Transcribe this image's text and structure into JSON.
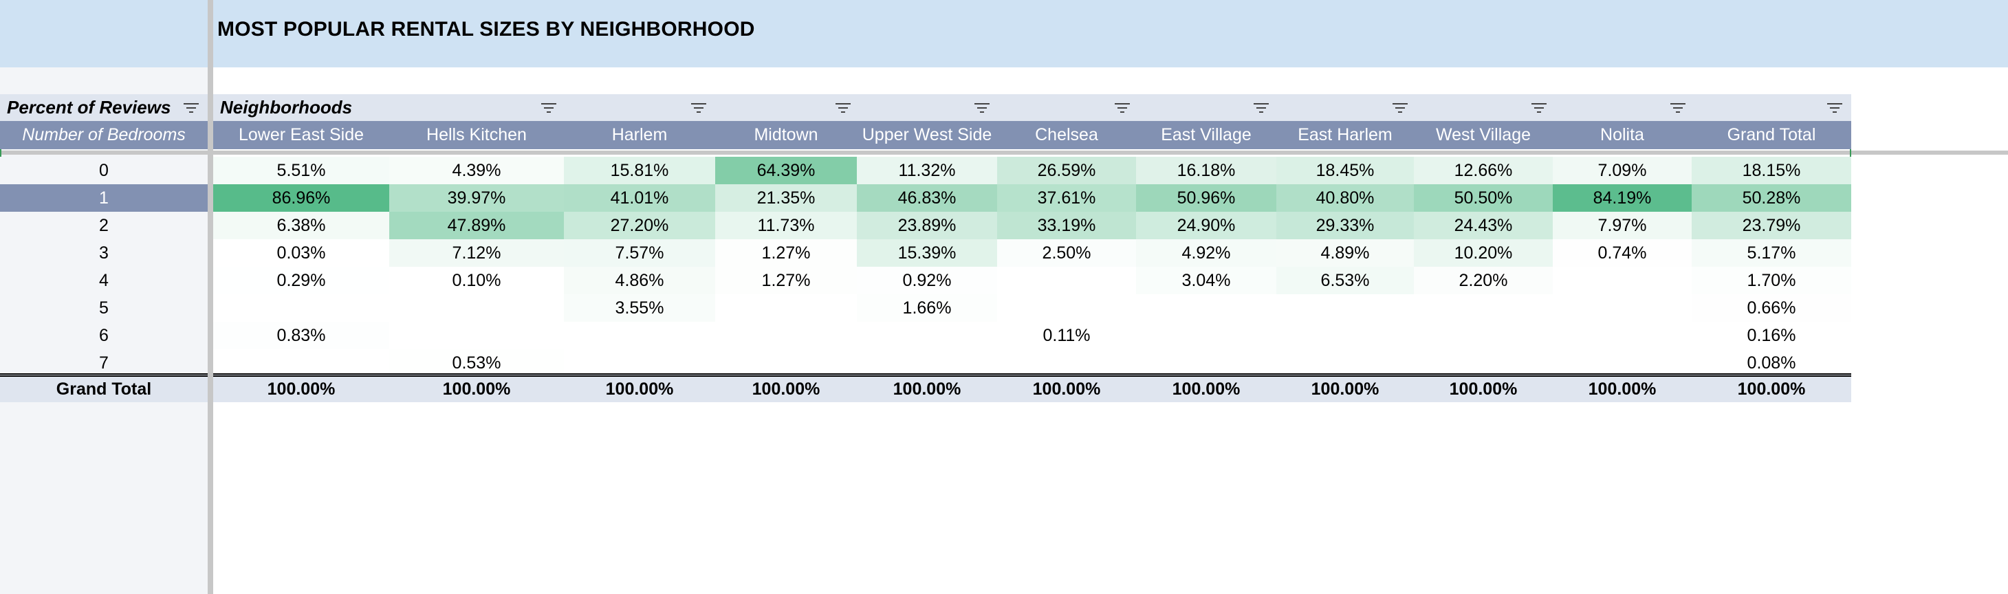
{
  "sheet": {
    "title": "MOST POPULAR RENTAL SIZES BY NEIGHBORHOOD"
  },
  "pivot": {
    "values_label": "Percent of Reviews",
    "columns_label": "Neighborhoods",
    "rows_label": "Number of Bedrooms",
    "columns": [
      "Lower East Side",
      "Hells Kitchen",
      "Harlem",
      "Midtown",
      "Upper West Side",
      "Chelsea",
      "East Village",
      "East Harlem",
      "West Village",
      "Nolita",
      "Grand Total"
    ],
    "selected_row": "1",
    "heat_colors": {
      "low": "#ffffff",
      "high": "#57bb8a"
    },
    "rows": [
      {
        "label": "0",
        "cells": [
          "5.51%",
          "4.39%",
          "15.81%",
          "64.39%",
          "11.32%",
          "26.59%",
          "16.18%",
          "18.45%",
          "12.66%",
          "7.09%",
          "18.15%"
        ]
      },
      {
        "label": "1",
        "cells": [
          "86.96%",
          "39.97%",
          "41.01%",
          "21.35%",
          "46.83%",
          "37.61%",
          "50.96%",
          "40.80%",
          "50.50%",
          "84.19%",
          "50.28%"
        ]
      },
      {
        "label": "2",
        "cells": [
          "6.38%",
          "47.89%",
          "27.20%",
          "11.73%",
          "23.89%",
          "33.19%",
          "24.90%",
          "29.33%",
          "24.43%",
          "7.97%",
          "23.79%"
        ]
      },
      {
        "label": "3",
        "cells": [
          "0.03%",
          "7.12%",
          "7.57%",
          "1.27%",
          "15.39%",
          "2.50%",
          "4.92%",
          "4.89%",
          "10.20%",
          "0.74%",
          "5.17%"
        ]
      },
      {
        "label": "4",
        "cells": [
          "0.29%",
          "0.10%",
          "4.86%",
          "1.27%",
          "0.92%",
          "",
          "3.04%",
          "6.53%",
          "2.20%",
          "",
          "1.70%"
        ]
      },
      {
        "label": "5",
        "cells": [
          "",
          "",
          "3.55%",
          "",
          "1.66%",
          "",
          "",
          "",
          "",
          "",
          "0.66%"
        ]
      },
      {
        "label": "6",
        "cells": [
          "0.83%",
          "",
          "",
          "",
          "",
          "0.11%",
          "",
          "",
          "",
          "",
          "0.16%"
        ]
      },
      {
        "label": "7",
        "cells": [
          "",
          "0.53%",
          "",
          "",
          "",
          "",
          "",
          "",
          "",
          "",
          "0.08%"
        ]
      }
    ],
    "grand_total": {
      "label": "Grand Total",
      "cells": [
        "100.00%",
        "100.00%",
        "100.00%",
        "100.00%",
        "100.00%",
        "100.00%",
        "100.00%",
        "100.00%",
        "100.00%",
        "100.00%",
        "100.00%"
      ]
    }
  }
}
